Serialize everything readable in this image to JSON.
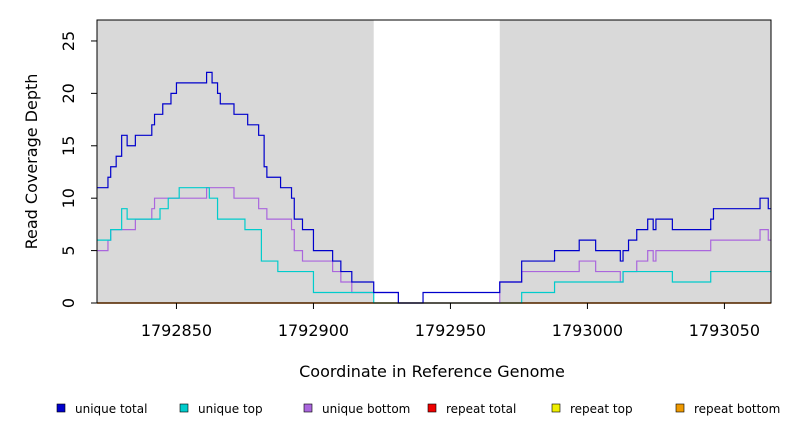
{
  "chart_data": {
    "type": "line",
    "title": "",
    "xlabel": "Coordinate in Reference Genome",
    "ylabel": "Read Coverage Depth",
    "xlim": [
      1792821,
      1793067
    ],
    "ylim": [
      0,
      27
    ],
    "x_ticks": [
      1792850,
      1792900,
      1792950,
      1793000,
      1793050
    ],
    "y_ticks": [
      0,
      5,
      10,
      15,
      20,
      25
    ],
    "shaded_regions": [
      [
        1792821,
        1792922
      ],
      [
        1792968,
        1793067
      ]
    ],
    "shade_color": "#d9d9d9",
    "step": true,
    "legend_position": "bottom",
    "series": [
      {
        "name": "unique total",
        "color": "#0000cc",
        "points": [
          [
            1792821,
            11
          ],
          [
            1792825,
            12
          ],
          [
            1792826,
            13
          ],
          [
            1792828,
            14
          ],
          [
            1792830,
            16
          ],
          [
            1792832,
            15
          ],
          [
            1792835,
            16
          ],
          [
            1792841,
            17
          ],
          [
            1792842,
            18
          ],
          [
            1792845,
            19
          ],
          [
            1792848,
            20
          ],
          [
            1792850,
            21
          ],
          [
            1792861,
            22
          ],
          [
            1792863,
            21
          ],
          [
            1792865,
            20
          ],
          [
            1792866,
            19
          ],
          [
            1792871,
            18
          ],
          [
            1792876,
            17
          ],
          [
            1792880,
            16
          ],
          [
            1792882,
            13
          ],
          [
            1792883,
            12
          ],
          [
            1792888,
            11
          ],
          [
            1792892,
            10
          ],
          [
            1792893,
            8
          ],
          [
            1792896,
            7
          ],
          [
            1792900,
            5
          ],
          [
            1792907,
            4
          ],
          [
            1792910,
            3
          ],
          [
            1792914,
            2
          ],
          [
            1792922,
            1
          ],
          [
            1792931,
            0
          ],
          [
            1792940,
            1
          ],
          [
            1792968,
            2
          ],
          [
            1792976,
            4
          ],
          [
            1792988,
            5
          ],
          [
            1792997,
            6
          ],
          [
            1793003,
            5
          ],
          [
            1793012,
            4
          ],
          [
            1793013,
            5
          ],
          [
            1793015,
            6
          ],
          [
            1793018,
            7
          ],
          [
            1793022,
            8
          ],
          [
            1793024,
            7
          ],
          [
            1793025,
            8
          ],
          [
            1793031,
            7
          ],
          [
            1793045,
            8
          ],
          [
            1793046,
            9
          ],
          [
            1793063,
            10
          ],
          [
            1793066,
            9
          ],
          [
            1793067,
            9
          ]
        ]
      },
      {
        "name": "unique top",
        "color": "#00cccc",
        "points": [
          [
            1792821,
            6
          ],
          [
            1792826,
            7
          ],
          [
            1792830,
            9
          ],
          [
            1792832,
            8
          ],
          [
            1792840,
            8
          ],
          [
            1792844,
            9
          ],
          [
            1792847,
            10
          ],
          [
            1792851,
            11
          ],
          [
            1792861,
            11
          ],
          [
            1792862,
            10
          ],
          [
            1792865,
            8
          ],
          [
            1792875,
            7
          ],
          [
            1792881,
            4
          ],
          [
            1792887,
            3
          ],
          [
            1792900,
            1
          ],
          [
            1792914,
            1
          ],
          [
            1792922,
            0
          ],
          [
            1792968,
            0
          ],
          [
            1792976,
            1
          ],
          [
            1792988,
            2
          ],
          [
            1793012,
            2
          ],
          [
            1793013,
            3
          ],
          [
            1793031,
            2
          ],
          [
            1793045,
            3
          ],
          [
            1793067,
            3
          ]
        ]
      },
      {
        "name": "unique bottom",
        "color": "#aa66dd",
        "points": [
          [
            1792821,
            5
          ],
          [
            1792825,
            6
          ],
          [
            1792826,
            7
          ],
          [
            1792835,
            8
          ],
          [
            1792841,
            9
          ],
          [
            1792842,
            10
          ],
          [
            1792861,
            11
          ],
          [
            1792871,
            10
          ],
          [
            1792880,
            9
          ],
          [
            1792883,
            8
          ],
          [
            1792892,
            7
          ],
          [
            1792893,
            5
          ],
          [
            1792896,
            4
          ],
          [
            1792907,
            3
          ],
          [
            1792910,
            2
          ],
          [
            1792914,
            1
          ],
          [
            1792922,
            1
          ],
          [
            1792931,
            0
          ],
          [
            1792940,
            0
          ],
          [
            1792968,
            2
          ],
          [
            1792976,
            3
          ],
          [
            1792997,
            4
          ],
          [
            1793003,
            3
          ],
          [
            1793012,
            2
          ],
          [
            1793013,
            3
          ],
          [
            1793018,
            4
          ],
          [
            1793022,
            5
          ],
          [
            1793024,
            4
          ],
          [
            1793025,
            5
          ],
          [
            1793045,
            6
          ],
          [
            1793063,
            7
          ],
          [
            1793066,
            6
          ],
          [
            1793067,
            6
          ]
        ]
      },
      {
        "name": "repeat total",
        "color": "#ee0000",
        "points": [
          [
            1792821,
            0
          ],
          [
            1793067,
            0
          ]
        ]
      },
      {
        "name": "repeat top",
        "color": "#eeee00",
        "points": [
          [
            1792821,
            0
          ],
          [
            1793067,
            0
          ]
        ]
      },
      {
        "name": "repeat bottom",
        "color": "#ee9900",
        "points": [
          [
            1792821,
            0
          ],
          [
            1793067,
            0
          ]
        ]
      }
    ]
  }
}
